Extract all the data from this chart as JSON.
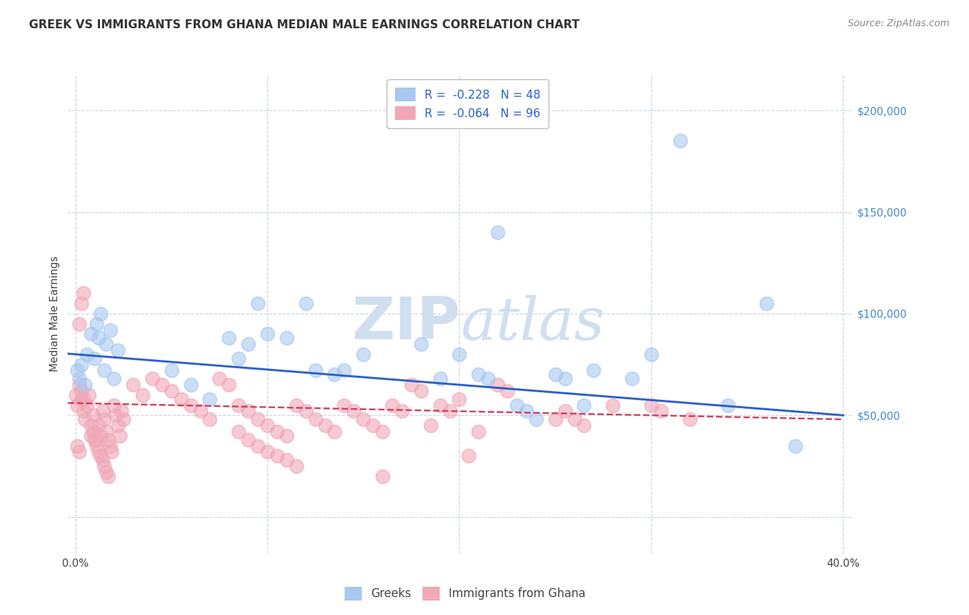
{
  "title": "GREEK VS IMMIGRANTS FROM GHANA MEDIAN MALE EARNINGS CORRELATION CHART",
  "source": "Source: ZipAtlas.com",
  "ylabel": "Median Male Earnings",
  "y_min": -18000,
  "y_max": 218000,
  "x_min": -0.004,
  "x_max": 0.405,
  "blue_color": "#a8c8f0",
  "pink_color": "#f0a8b8",
  "trend_blue_color": "#3060c8",
  "trend_pink_color": "#d04060",
  "watermark_color": "#d0dff0",
  "background_color": "#ffffff",
  "grid_color": "#c8d4e4",
  "blue_scatter_x": [
    0.001,
    0.002,
    0.003,
    0.005,
    0.006,
    0.008,
    0.01,
    0.011,
    0.012,
    0.013,
    0.015,
    0.016,
    0.018,
    0.02,
    0.022,
    0.05,
    0.06,
    0.07,
    0.08,
    0.085,
    0.09,
    0.095,
    0.1,
    0.11,
    0.12,
    0.125,
    0.135,
    0.14,
    0.15,
    0.18,
    0.19,
    0.2,
    0.21,
    0.215,
    0.22,
    0.23,
    0.235,
    0.24,
    0.25,
    0.255,
    0.265,
    0.27,
    0.29,
    0.3,
    0.315,
    0.34,
    0.36,
    0.375
  ],
  "blue_scatter_y": [
    72000,
    68000,
    75000,
    65000,
    80000,
    90000,
    78000,
    95000,
    88000,
    100000,
    72000,
    85000,
    92000,
    68000,
    82000,
    72000,
    65000,
    58000,
    88000,
    78000,
    85000,
    105000,
    90000,
    88000,
    105000,
    72000,
    70000,
    72000,
    80000,
    85000,
    68000,
    80000,
    70000,
    68000,
    140000,
    55000,
    52000,
    48000,
    70000,
    68000,
    55000,
    72000,
    68000,
    80000,
    185000,
    55000,
    105000,
    35000
  ],
  "pink_scatter_x": [
    0.0,
    0.001,
    0.002,
    0.003,
    0.004,
    0.005,
    0.006,
    0.007,
    0.008,
    0.009,
    0.01,
    0.011,
    0.012,
    0.013,
    0.014,
    0.015,
    0.016,
    0.017,
    0.018,
    0.019,
    0.02,
    0.021,
    0.022,
    0.023,
    0.024,
    0.025,
    0.002,
    0.003,
    0.004,
    0.03,
    0.035,
    0.04,
    0.045,
    0.05,
    0.055,
    0.06,
    0.065,
    0.07,
    0.075,
    0.08,
    0.085,
    0.09,
    0.095,
    0.1,
    0.105,
    0.11,
    0.115,
    0.12,
    0.125,
    0.13,
    0.135,
    0.14,
    0.145,
    0.15,
    0.155,
    0.16,
    0.165,
    0.17,
    0.175,
    0.18,
    0.185,
    0.19,
    0.195,
    0.2,
    0.205,
    0.21,
    0.22,
    0.225,
    0.16,
    0.25,
    0.255,
    0.26,
    0.265,
    0.28,
    0.3,
    0.305,
    0.32,
    0.085,
    0.09,
    0.095,
    0.1,
    0.105,
    0.11,
    0.115,
    0.008,
    0.009,
    0.01,
    0.011,
    0.012,
    0.013,
    0.014,
    0.015,
    0.016,
    0.017,
    0.001,
    0.002,
    0.003,
    0.004
  ],
  "pink_scatter_y": [
    60000,
    55000,
    65000,
    58000,
    52000,
    48000,
    55000,
    60000,
    45000,
    50000,
    42000,
    38000,
    45000,
    40000,
    52000,
    48000,
    42000,
    38000,
    35000,
    32000,
    55000,
    50000,
    45000,
    40000,
    52000,
    48000,
    95000,
    105000,
    110000,
    65000,
    60000,
    68000,
    65000,
    62000,
    58000,
    55000,
    52000,
    48000,
    68000,
    65000,
    55000,
    52000,
    48000,
    45000,
    42000,
    40000,
    55000,
    52000,
    48000,
    45000,
    42000,
    55000,
    52000,
    48000,
    45000,
    42000,
    55000,
    52000,
    65000,
    62000,
    45000,
    55000,
    52000,
    58000,
    30000,
    42000,
    65000,
    62000,
    20000,
    48000,
    52000,
    48000,
    45000,
    55000,
    55000,
    52000,
    48000,
    42000,
    38000,
    35000,
    32000,
    30000,
    28000,
    25000,
    40000,
    42000,
    38000,
    35000,
    32000,
    30000,
    28000,
    25000,
    22000,
    20000,
    35000,
    32000,
    62000,
    58000
  ],
  "trend_blue_intercept": 80000,
  "trend_blue_slope": -75000,
  "trend_pink_intercept": 56000,
  "trend_pink_slope": -20000,
  "yticks": [
    0,
    50000,
    100000,
    150000,
    200000
  ],
  "ytick_labels_right": [
    "",
    "$50,000",
    "$100,000",
    "$150,000",
    "$200,000"
  ],
  "xtick_positions": [
    0.0,
    0.1,
    0.2,
    0.3,
    0.4
  ],
  "xtick_labels": [
    "0.0%",
    "",
    "",
    "",
    "40.0%"
  ]
}
